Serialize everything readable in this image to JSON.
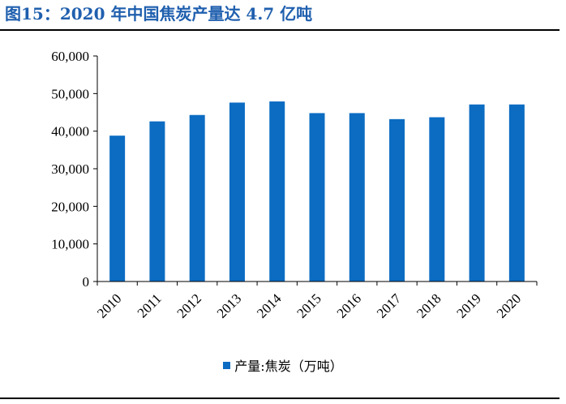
{
  "header": {
    "title": "图15：2020 年中国焦炭产量达 4.7 亿吨"
  },
  "chart_data": {
    "type": "bar",
    "categories": [
      "2010",
      "2011",
      "2012",
      "2013",
      "2014",
      "2015",
      "2016",
      "2017",
      "2018",
      "2019",
      "2020"
    ],
    "series": [
      {
        "name": "产量:焦炭（万吨）",
        "values": [
          38800,
          42600,
          44300,
          47600,
          47900,
          44800,
          44800,
          43200,
          43700,
          47100,
          47100
        ]
      }
    ],
    "ylim": [
      0,
      60000
    ],
    "yticks": [
      0,
      10000,
      20000,
      30000,
      40000,
      50000,
      60000
    ],
    "ytick_labels": [
      "0",
      "10,000",
      "20,000",
      "30,000",
      "40,000",
      "50,000",
      "60,000"
    ],
    "legend_position": "bottom",
    "colors": {
      "bar": "#0b6cc2",
      "axis": "#000000"
    }
  }
}
